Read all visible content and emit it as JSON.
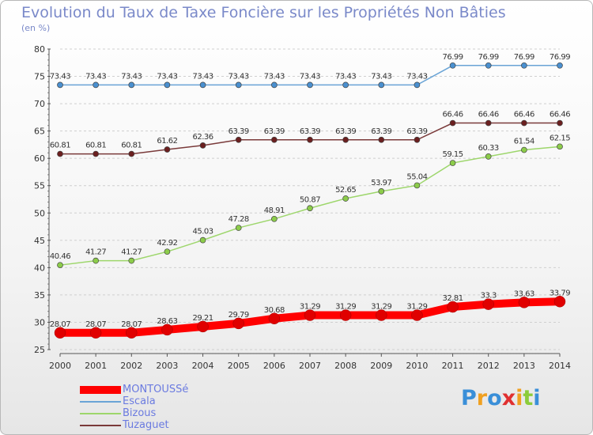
{
  "title": "Evolution du Taux de Taxe Foncière sur les Propriétés Non Bâties",
  "unit": "(en %)",
  "chart_data": {
    "type": "line",
    "x": [
      "2000",
      "2001",
      "2002",
      "2003",
      "2004",
      "2005",
      "2006",
      "2007",
      "2008",
      "2009",
      "2010",
      "2011",
      "2012",
      "2013",
      "2014"
    ],
    "ylim": [
      25,
      80
    ],
    "yticks": [
      25,
      30,
      35,
      40,
      45,
      50,
      55,
      60,
      65,
      70,
      75,
      80
    ],
    "grid": "horizontal dashed",
    "series": [
      {
        "name": "Escala",
        "color": "#6aa4d6",
        "marker": "#4a90d0",
        "values": [
          73.43,
          73.43,
          73.43,
          73.43,
          73.43,
          73.43,
          73.43,
          73.43,
          73.43,
          73.43,
          73.43,
          76.99,
          76.99,
          76.99,
          76.99
        ],
        "labels": [
          "73.43",
          "73.43",
          "73.43",
          "73.43",
          "73.43",
          "73.43",
          "73.43",
          "73.43",
          "73.43",
          "73.43",
          "73.43",
          "76.99",
          "76.99",
          "76.99",
          "76.99"
        ]
      },
      {
        "name": "Tuzaguet",
        "color": "#7a3a3a",
        "marker": "#6b1f1f",
        "values": [
          60.81,
          60.81,
          60.81,
          61.62,
          62.36,
          63.39,
          63.39,
          63.39,
          63.39,
          63.39,
          63.39,
          66.46,
          66.46,
          66.46,
          66.46
        ],
        "labels": [
          "60.81",
          "60.81",
          "60.81",
          "61.62",
          "62.36",
          "63.39",
          "63.39",
          "63.39",
          "63.39",
          "63.39",
          "63.39",
          "66.46",
          "66.46",
          "66.46",
          "66.46"
        ]
      },
      {
        "name": "Bizous",
        "color": "#9dd66b",
        "marker": "#8ccc4a",
        "values": [
          40.46,
          41.27,
          41.27,
          42.92,
          45.03,
          47.28,
          48.91,
          50.87,
          52.65,
          53.97,
          55.04,
          59.15,
          60.33,
          61.54,
          62.15
        ],
        "labels": [
          "40.46",
          "41.27",
          "41.27",
          "42.92",
          "45.03",
          "47.28",
          "48.91",
          "50.87",
          "52.65",
          "53.97",
          "55.04",
          "59.15",
          "60.33",
          "61.54",
          "62.15"
        ]
      },
      {
        "name": "MONTOUSSé",
        "color": "#ff0000",
        "marker": "#e00000",
        "values": [
          28.07,
          28.07,
          28.07,
          28.63,
          29.21,
          29.79,
          30.68,
          31.29,
          31.29,
          31.29,
          31.29,
          32.81,
          33.3,
          33.63,
          33.79
        ],
        "labels": [
          "28.07",
          "28.07",
          "28.07",
          "28.63",
          "29.21",
          "29.79",
          "30.68",
          "31.29",
          "31.29",
          "31.29",
          "31.29",
          "32.81",
          "33.3",
          "33.63",
          "33.79"
        ]
      }
    ]
  },
  "legend": [
    {
      "name": "MONTOUSSé",
      "color": "#ff0000"
    },
    {
      "name": "Escala",
      "color": "#6aa4d6"
    },
    {
      "name": "Bizous",
      "color": "#9dd66b"
    },
    {
      "name": "Tuzaguet",
      "color": "#7a3a3a"
    }
  ],
  "logo": {
    "letters": [
      "P",
      "r",
      "o",
      "x",
      "i",
      "t",
      "i"
    ],
    "colors": [
      "#3a8fd8",
      "#f0a020",
      "#3a8fd8",
      "#e03030",
      "#f0a020",
      "#8ccc3a",
      "#3a8fd8"
    ]
  }
}
